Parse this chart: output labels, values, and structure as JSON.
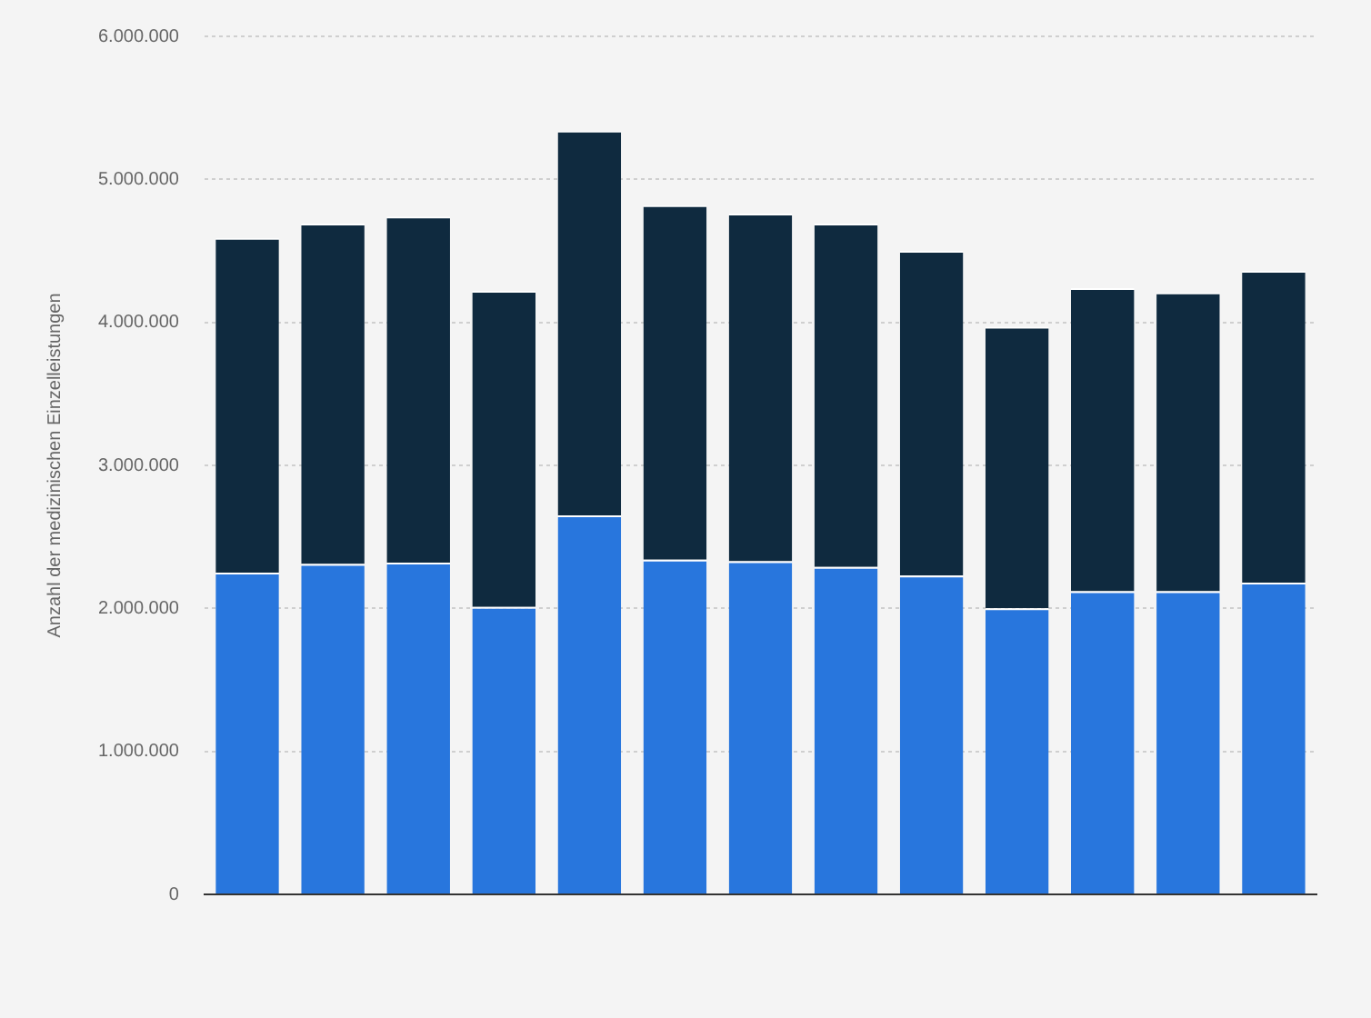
{
  "chart_data": {
    "type": "bar",
    "stacked": true,
    "ylabel": "Anzahl der medizinischen Einzelleistungen",
    "categories": [
      null,
      null,
      null,
      null,
      null,
      null,
      null,
      null,
      null,
      null,
      null,
      null,
      null
    ],
    "series": [
      {
        "color": "#2876dd",
        "values": [
          2250000,
          2310000,
          2320000,
          2010000,
          2650000,
          2340000,
          2330000,
          2290000,
          2230000,
          2000000,
          2120000,
          2120000,
          2180000
        ]
      },
      {
        "color": "#0f2a3f",
        "values": [
          2340000,
          2380000,
          2420000,
          2210000,
          2690000,
          2480000,
          2430000,
          2400000,
          2270000,
          1970000,
          2120000,
          2090000,
          2180000
        ]
      }
    ],
    "ylim": [
      0,
      6000000
    ],
    "yticks": [
      0,
      {
        "value": 1000000,
        "label": "1.000.000"
      },
      {
        "value": 2000000,
        "label": "2.000.000"
      },
      {
        "value": 3000000,
        "label": "3.000.000"
      },
      {
        "value": 4000000,
        "label": "4.000.000"
      },
      {
        "value": 5000000,
        "label": "5.000.000"
      },
      {
        "value": 6000000,
        "label": "6.000.000"
      }
    ],
    "grid": "y",
    "legend": false,
    "tick_labels": "y"
  }
}
